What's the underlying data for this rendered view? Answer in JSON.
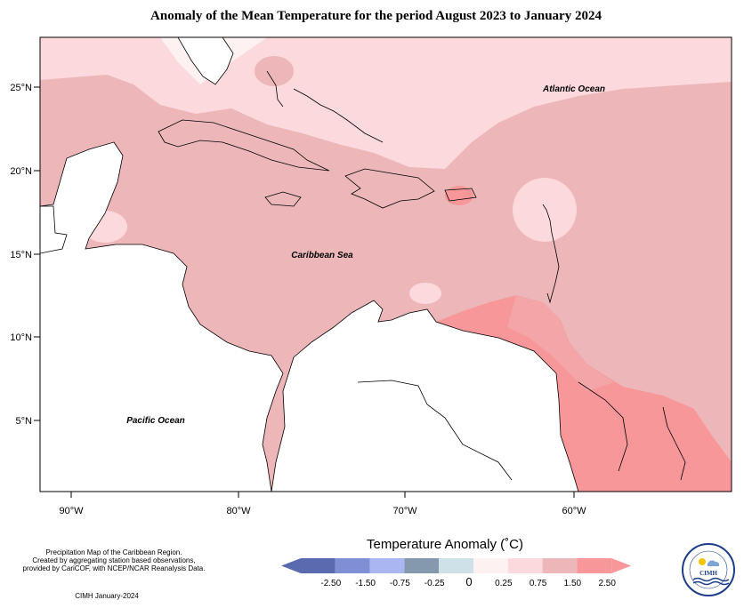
{
  "title": "Anomaly of the Mean Temperature for the period August 2023 to January 2024",
  "labels": {
    "atlantic": "Atlantic Ocean",
    "caribbean": "Caribbean Sea",
    "pacific": "Pacific Ocean"
  },
  "axes": {
    "lat_ticks": [
      "25°N",
      "20°N",
      "15°N",
      "10°N",
      "5°N"
    ],
    "lon_ticks": [
      "90°W",
      "80°W",
      "70°W",
      "60°W"
    ]
  },
  "notes": {
    "line1": "Precipitation Map of the Caribbean Region.",
    "line2": "Created by aggregating station based observations,",
    "line3": "provided by CariCOF, with NCEP/NCAR Reanalysis Data.",
    "credit": "CIMH January-2024"
  },
  "legend": {
    "title": "Temperature Anomaly (˚C)",
    "labels": [
      "-2.50",
      "-1.50",
      "-0.75",
      "-0.25",
      "0",
      "0.25",
      "0.75",
      "1.50",
      "2.50"
    ],
    "colors": [
      "#5a6aae",
      "#7e8fd6",
      "#a9b6f2",
      "#8599ae",
      "#cfe1e8",
      "#fdf1f1",
      "#fbd9dd",
      "#edb7b9",
      "#f79799"
    ]
  },
  "logo": {
    "text": "CIMH"
  }
}
